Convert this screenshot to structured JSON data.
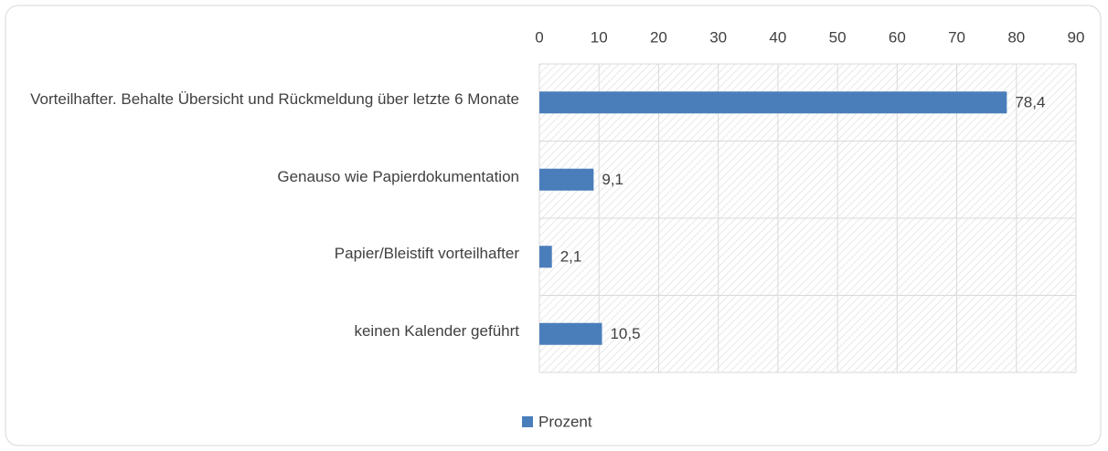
{
  "chart_data": {
    "type": "bar",
    "orientation": "horizontal",
    "categories": [
      "Vorteilhafter. Behalte Übersicht und Rückmeldung über letzte 6 Monate",
      "Genauso wie Papierdokumentation",
      "Papier/Bleistift vorteilhafter",
      "keinen Kalender geführt"
    ],
    "series": [
      {
        "name": "Prozent",
        "color": "#4a7ebb",
        "values": [
          78.4,
          9.1,
          2.1,
          10.5
        ],
        "value_labels": [
          "78,4",
          "9,1",
          "2,1",
          "10,5"
        ]
      }
    ],
    "xlim": [
      0,
      90
    ],
    "xticks": [
      0,
      10,
      20,
      30,
      40,
      50,
      60,
      70,
      80,
      90
    ],
    "grid": true,
    "legend": "bottom"
  }
}
